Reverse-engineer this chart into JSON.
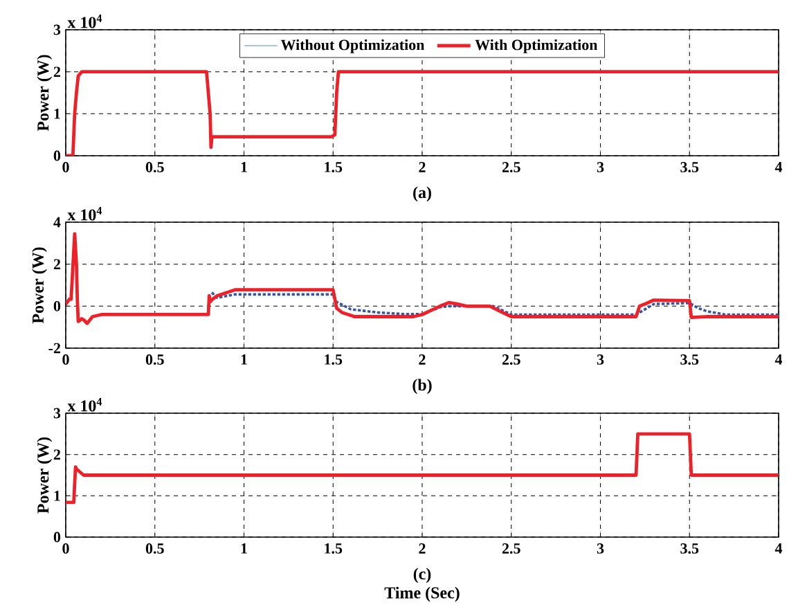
{
  "chart_data": [
    {
      "type": "line",
      "xlim": [
        0,
        4
      ],
      "xticks": [
        0,
        0.5,
        1,
        1.5,
        2,
        2.5,
        3,
        3.5,
        4
      ],
      "ylim": [
        0,
        3
      ],
      "yticks": [
        0,
        1,
        2,
        3
      ],
      "ylabel": "Power (W)",
      "annotations": [
        "x 10$^{4}$",
        "(a)"
      ],
      "grid": true,
      "legend": "top",
      "series": [
        {
          "name": "Without Optimization",
          "color": "#4f8fd0"
        },
        {
          "name": "With Optimization",
          "color": "#ee2028",
          "x": [
            0,
            0.04,
            0.05,
            0.06,
            0.07,
            0.09,
            0.79,
            0.8,
            0.81,
            0.815,
            0.82,
            1.49,
            1.51,
            1.52,
            1.53,
            4
          ],
          "values": [
            0,
            0,
            1.0,
            1.5,
            1.9,
            2.0,
            2.0,
            1.5,
            1.0,
            0.2,
            0.45,
            0.45,
            0.5,
            1.5,
            2.0,
            2.0
          ]
        }
      ]
    },
    {
      "type": "line",
      "xlim": [
        0,
        4
      ],
      "xticks": [
        0,
        0.5,
        1,
        1.5,
        2,
        2.5,
        3,
        3.5,
        4
      ],
      "ylim": [
        -2,
        4
      ],
      "yticks": [
        -2,
        0,
        2,
        4
      ],
      "ylabel": "Power (W)",
      "annotations": [
        "x 10$^{4}$",
        "(b)"
      ],
      "grid": true,
      "series": [
        {
          "color": "#3355aa",
          "line_style": "dashed",
          "x": [
            0.82,
            0.85,
            0.95,
            1.5,
            1.52,
            1.6,
            1.75,
            1.9,
            2.0,
            2.1,
            2.15,
            2.4,
            2.5,
            3.2,
            3.3,
            3.5,
            3.55,
            3.6,
            3.7,
            4
          ],
          "values": [
            0.65,
            0.4,
            0.56,
            0.56,
            0.2,
            -0.15,
            -0.3,
            -0.38,
            -0.38,
            -0.05,
            0,
            0,
            -0.4,
            -0.4,
            0.1,
            0.15,
            -0.1,
            -0.25,
            -0.4,
            -0.4
          ]
        },
        {
          "color": "#ee2028",
          "x": [
            0,
            0.02,
            0.03,
            0.05,
            0.06,
            0.065,
            0.07,
            0.09,
            0.1,
            0.12,
            0.15,
            0.2,
            0.8,
            0.805,
            0.81,
            0.82,
            0.85,
            0.95,
            1.5,
            1.52,
            1.55,
            1.62,
            1.95,
            2.0,
            2.05,
            2.1,
            2.15,
            2.2,
            2.25,
            2.38,
            2.45,
            2.5,
            3.2,
            3.22,
            3.25,
            3.3,
            3.5,
            3.51,
            3.6,
            4
          ],
          "values": [
            0.09,
            0.33,
            0.33,
            3.45,
            2.0,
            0.3,
            -0.73,
            -0.6,
            -0.65,
            -0.82,
            -0.5,
            -0.4,
            -0.4,
            0.5,
            0.2,
            0.3,
            0.5,
            0.78,
            0.78,
            -0.1,
            -0.3,
            -0.5,
            -0.5,
            -0.4,
            -0.2,
            0,
            0.17,
            0.1,
            0,
            0,
            -0.3,
            -0.5,
            -0.5,
            0,
            0.1,
            0.29,
            0.26,
            -0.54,
            -0.5,
            -0.5
          ]
        }
      ]
    },
    {
      "type": "line",
      "xlim": [
        0,
        4
      ],
      "xticks": [
        0,
        0.5,
        1,
        1.5,
        2,
        2.5,
        3,
        3.5,
        4
      ],
      "ylim": [
        0,
        3
      ],
      "yticks": [
        0,
        1,
        2,
        3
      ],
      "ylabel": "Power (W)",
      "xlabel": "Time (Sec)",
      "annotations": [
        "x 10$^{4}$",
        "(c)"
      ],
      "grid": true,
      "series": [
        {
          "color": "#ee2028",
          "x": [
            0,
            0.045,
            0.05,
            0.055,
            0.06,
            0.1,
            3.2,
            3.21,
            3.5,
            3.51,
            4
          ],
          "values": [
            0.84,
            0.84,
            1.3,
            1.7,
            1.65,
            1.5,
            1.5,
            2.5,
            2.5,
            1.5,
            1.5
          ]
        }
      ]
    }
  ]
}
